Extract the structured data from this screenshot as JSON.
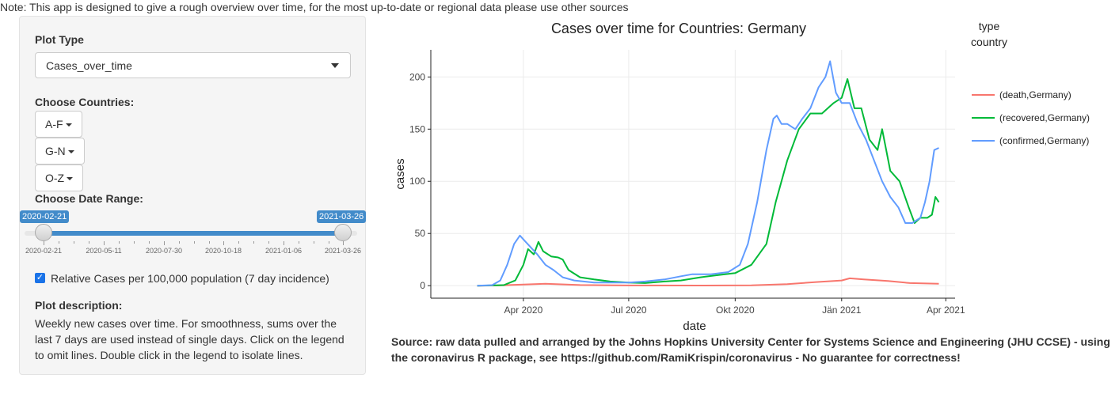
{
  "note": "Note: This app is designed to give a rough overview over time, for the most up-to-date or regional data please use other sources",
  "sidebar": {
    "plot_type_label": "Plot Type",
    "plot_type_value": "Cases_over_time",
    "countries_label": "Choose Countries:",
    "country_groups": [
      "A-F",
      "G-N",
      "O-Z"
    ],
    "date_range_label": "Choose Date Range:",
    "date_from": "2020-02-21",
    "date_to": "2021-03-26",
    "slider_ticks": [
      "2020-02-21",
      "2020-05-11",
      "2020-07-30",
      "2020-10-18",
      "2021-01-06",
      "2021-03-26"
    ],
    "relative_label": "Relative Cases per 100,000 population (7 day incidence)",
    "relative_checked": true,
    "description_label": "Plot description:",
    "description": "Weekly new cases over time. For smoothness, sums over the last 7 days are used instead of single days. Click on the legend to omit lines. Double click in the legend to isolate lines."
  },
  "chart_data": {
    "type": "line",
    "title": "Cases over time for Countries: Germany",
    "xlabel": "date",
    "ylabel": "cases",
    "x_tick_labels": [
      "Apr 2020",
      "Jul 2020",
      "Okt 2020",
      "Jän 2021",
      "Apr 2021"
    ],
    "y_ticks": [
      0,
      50,
      100,
      150,
      200
    ],
    "ylim": [
      -12,
      226
    ],
    "xlim": [
      "2020-01-12",
      "2021-04-09"
    ],
    "grid": true,
    "legend_title": [
      "type",
      "country"
    ],
    "legend_position": "right",
    "series": [
      {
        "name": "(death,Germany)",
        "color": "#f8766d",
        "points": [
          [
            "2020-02-21",
            0
          ],
          [
            "2020-03-10",
            0.2
          ],
          [
            "2020-04-01",
            1
          ],
          [
            "2020-04-20",
            1.8
          ],
          [
            "2020-05-20",
            0.6
          ],
          [
            "2020-07-01",
            0.2
          ],
          [
            "2020-09-01",
            0.1
          ],
          [
            "2020-10-15",
            0.3
          ],
          [
            "2020-11-15",
            1.5
          ],
          [
            "2020-12-10",
            3.5
          ],
          [
            "2021-01-01",
            5
          ],
          [
            "2021-01-08",
            7
          ],
          [
            "2021-01-20",
            6
          ],
          [
            "2021-02-10",
            4.5
          ],
          [
            "2021-03-01",
            2.5
          ],
          [
            "2021-03-26",
            1.8
          ]
        ]
      },
      {
        "name": "(recovered,Germany)",
        "color": "#00ba38",
        "points": [
          [
            "2020-02-21",
            0
          ],
          [
            "2020-03-15",
            0.5
          ],
          [
            "2020-03-25",
            5
          ],
          [
            "2020-04-01",
            20
          ],
          [
            "2020-04-05",
            35
          ],
          [
            "2020-04-10",
            30
          ],
          [
            "2020-04-14",
            42
          ],
          [
            "2020-04-18",
            33
          ],
          [
            "2020-04-25",
            28
          ],
          [
            "2020-05-01",
            27
          ],
          [
            "2020-05-05",
            25
          ],
          [
            "2020-05-10",
            15
          ],
          [
            "2020-05-20",
            8
          ],
          [
            "2020-06-01",
            6
          ],
          [
            "2020-06-15",
            4
          ],
          [
            "2020-07-01",
            3
          ],
          [
            "2020-07-15",
            2.5
          ],
          [
            "2020-08-01",
            4
          ],
          [
            "2020-08-15",
            5
          ],
          [
            "2020-09-01",
            8
          ],
          [
            "2020-09-15",
            10
          ],
          [
            "2020-10-01",
            12
          ],
          [
            "2020-10-15",
            20
          ],
          [
            "2020-10-28",
            40
          ],
          [
            "2020-11-05",
            80
          ],
          [
            "2020-11-15",
            120
          ],
          [
            "2020-11-25",
            150
          ],
          [
            "2020-12-05",
            165
          ],
          [
            "2020-12-15",
            165
          ],
          [
            "2020-12-25",
            175
          ],
          [
            "2021-01-01",
            180
          ],
          [
            "2021-01-06",
            198
          ],
          [
            "2021-01-12",
            170
          ],
          [
            "2021-01-18",
            170
          ],
          [
            "2021-01-25",
            140
          ],
          [
            "2021-02-01",
            130
          ],
          [
            "2021-02-05",
            150
          ],
          [
            "2021-02-12",
            110
          ],
          [
            "2021-02-20",
            100
          ],
          [
            "2021-02-28",
            75
          ],
          [
            "2021-03-05",
            60
          ],
          [
            "2021-03-10",
            65
          ],
          [
            "2021-03-16",
            65
          ],
          [
            "2021-03-20",
            68
          ],
          [
            "2021-03-23",
            85
          ],
          [
            "2021-03-26",
            80
          ]
        ]
      },
      {
        "name": "(confirmed,Germany)",
        "color": "#619cff",
        "points": [
          [
            "2020-02-21",
            0
          ],
          [
            "2020-03-05",
            0.5
          ],
          [
            "2020-03-12",
            5
          ],
          [
            "2020-03-18",
            20
          ],
          [
            "2020-03-24",
            40
          ],
          [
            "2020-03-29",
            48
          ],
          [
            "2020-04-03",
            42
          ],
          [
            "2020-04-08",
            36
          ],
          [
            "2020-04-13",
            30
          ],
          [
            "2020-04-20",
            20
          ],
          [
            "2020-04-27",
            15
          ],
          [
            "2020-05-05",
            8
          ],
          [
            "2020-05-15",
            5
          ],
          [
            "2020-06-01",
            3
          ],
          [
            "2020-06-15",
            3
          ],
          [
            "2020-07-01",
            3
          ],
          [
            "2020-07-15",
            4
          ],
          [
            "2020-08-01",
            6
          ],
          [
            "2020-08-15",
            9
          ],
          [
            "2020-08-25",
            11
          ],
          [
            "2020-09-10",
            11
          ],
          [
            "2020-09-25",
            13
          ],
          [
            "2020-10-05",
            20
          ],
          [
            "2020-10-12",
            40
          ],
          [
            "2020-10-20",
            80
          ],
          [
            "2020-10-28",
            130
          ],
          [
            "2020-11-03",
            160
          ],
          [
            "2020-11-06",
            163
          ],
          [
            "2020-11-10",
            155
          ],
          [
            "2020-11-15",
            155
          ],
          [
            "2020-11-22",
            150
          ],
          [
            "2020-11-28",
            160
          ],
          [
            "2020-12-05",
            170
          ],
          [
            "2020-12-12",
            190
          ],
          [
            "2020-12-18",
            200
          ],
          [
            "2020-12-22",
            215
          ],
          [
            "2020-12-27",
            185
          ],
          [
            "2021-01-01",
            175
          ],
          [
            "2021-01-08",
            175
          ],
          [
            "2021-01-15",
            155
          ],
          [
            "2021-01-22",
            140
          ],
          [
            "2021-01-29",
            120
          ],
          [
            "2021-02-05",
            100
          ],
          [
            "2021-02-12",
            85
          ],
          [
            "2021-02-19",
            75
          ],
          [
            "2021-02-25",
            60
          ],
          [
            "2021-03-03",
            60
          ],
          [
            "2021-03-10",
            65
          ],
          [
            "2021-03-14",
            80
          ],
          [
            "2021-03-18",
            100
          ],
          [
            "2021-03-22",
            130
          ],
          [
            "2021-03-26",
            132
          ]
        ]
      }
    ]
  },
  "source": "Source: raw data pulled and arranged by the Johns Hopkins University Center for Systems Science and Engineering (JHU CCSE) - using the coronavirus R package, see https://github.com/RamiKrispin/coronavirus - No guarantee for correctness!"
}
